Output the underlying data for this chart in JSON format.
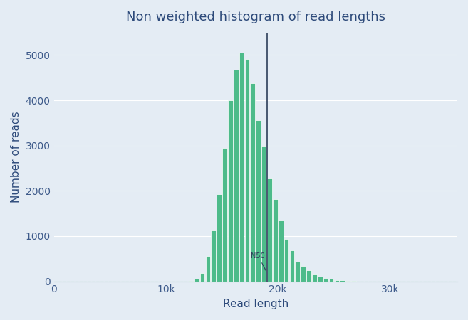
{
  "title": "Non weighted histogram of read lengths",
  "xlabel": "Read length",
  "ylabel": "Number of reads",
  "bar_color": "#4dbb8a",
  "bar_edge_color": "#ffffff",
  "background_color": "#e4ecf4",
  "title_color": "#2d4a7a",
  "axis_label_color": "#2d4a7a",
  "tick_color": "#3d5a8a",
  "n50_line_color": "#2d3e5a",
  "n50_value": 19000,
  "n50_label": "N50",
  "bin_width": 500,
  "bins_start": 12000,
  "bar_heights": [
    10,
    50,
    180,
    560,
    1120,
    1920,
    2950,
    4000,
    4670,
    5050,
    4920,
    4380,
    3560,
    2980,
    2270,
    1820,
    1340,
    940,
    680,
    430,
    340,
    240,
    150,
    110,
    75,
    50,
    30,
    20,
    10,
    5
  ],
  "xlim": [
    0,
    36000
  ],
  "ylim": [
    0,
    5500
  ],
  "xticks": [
    0,
    10000,
    20000,
    30000
  ],
  "xticklabels": [
    "0",
    "10k",
    "20k",
    "30k"
  ],
  "yticks": [
    0,
    1000,
    2000,
    3000,
    4000,
    5000
  ],
  "figsize": [
    6.57,
    4.5
  ],
  "dpi": 100
}
